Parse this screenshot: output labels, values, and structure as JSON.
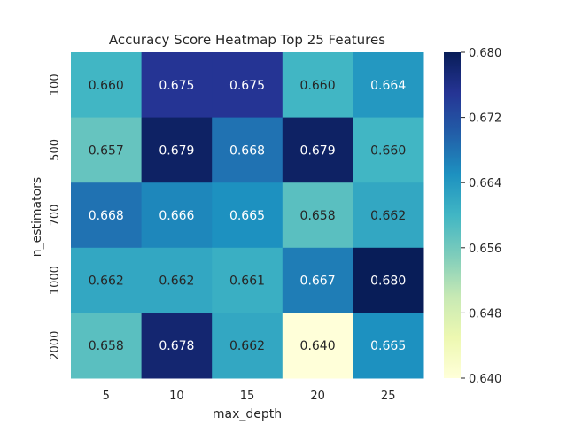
{
  "chart_data": {
    "type": "heatmap",
    "title": "Accuracy Score Heatmap Top 25 Features",
    "xlabel": "max_depth",
    "ylabel": "n_estimators",
    "x_categories": [
      "5",
      "10",
      "15",
      "20",
      "25"
    ],
    "y_categories": [
      "100",
      "500",
      "700",
      "1000",
      "2000"
    ],
    "values": [
      [
        0.66,
        0.675,
        0.675,
        0.66,
        0.664
      ],
      [
        0.657,
        0.679,
        0.668,
        0.679,
        0.66
      ],
      [
        0.668,
        0.666,
        0.665,
        0.658,
        0.662
      ],
      [
        0.662,
        0.662,
        0.661,
        0.667,
        0.68
      ],
      [
        0.658,
        0.678,
        0.662,
        0.64,
        0.665
      ]
    ],
    "value_labels": [
      [
        "0.660",
        "0.675",
        "0.675",
        "0.660",
        "0.664"
      ],
      [
        "0.657",
        "0.679",
        "0.668",
        "0.679",
        "0.660"
      ],
      [
        "0.668",
        "0.666",
        "0.665",
        "0.658",
        "0.662"
      ],
      [
        "0.662",
        "0.662",
        "0.661",
        "0.667",
        "0.680"
      ],
      [
        "0.658",
        "0.678",
        "0.662",
        "0.640",
        "0.665"
      ]
    ],
    "colorbar": {
      "colormap": "YlGnBu",
      "range": [
        0.64,
        0.68
      ],
      "ticks": [
        0.64,
        0.648,
        0.656,
        0.664,
        0.672,
        0.68
      ],
      "tick_labels": [
        "0.640",
        "0.648",
        "0.656",
        "0.664",
        "0.672",
        "0.680"
      ]
    },
    "colors": {
      "colormap_stops": [
        "#ffffd9",
        "#edf8b1",
        "#c7e9b4",
        "#7fcdbb",
        "#41b6c4",
        "#1d91c0",
        "#225ea8",
        "#253494",
        "#081d58"
      ],
      "text_dark": "#262626",
      "text_light": "#ffffff"
    }
  }
}
